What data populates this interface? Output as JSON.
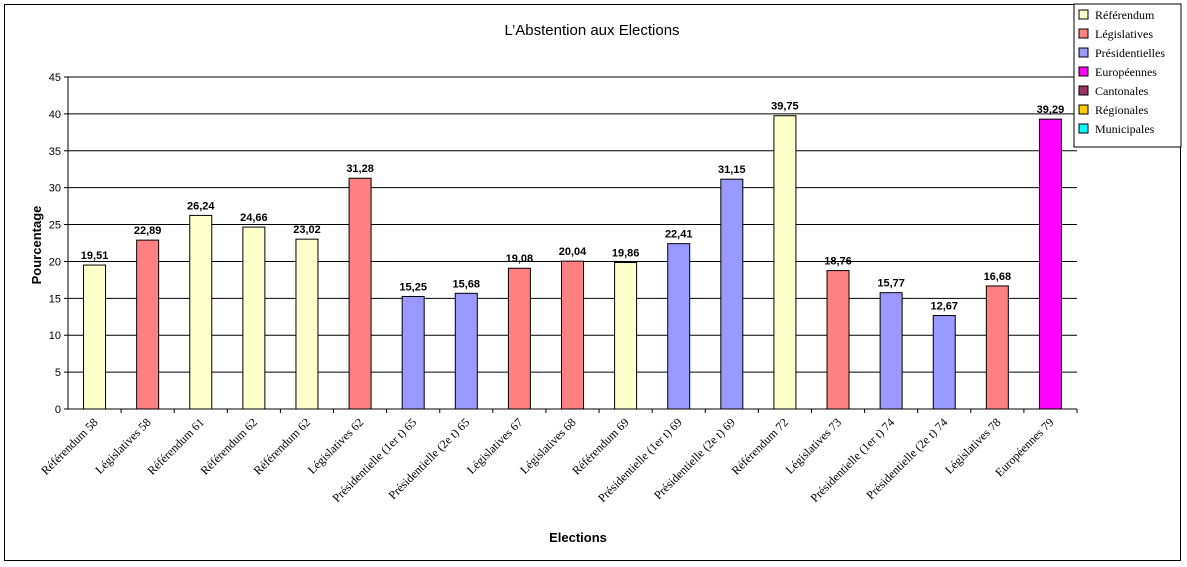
{
  "chart_data": {
    "type": "bar",
    "title": "L’Abstention aux Elections",
    "xlabel": "Elections",
    "ylabel": "Pourcentage",
    "ylim": [
      0,
      45
    ],
    "yticks": [
      0,
      5,
      10,
      15,
      20,
      25,
      30,
      35,
      40,
      45
    ],
    "grid": true,
    "legend_position": "top-right",
    "legend": [
      {
        "name": "Référendum",
        "color": "#FFFFCC"
      },
      {
        "name": "Législatives",
        "color": "#FF8080"
      },
      {
        "name": "Présidentielles",
        "color": "#9999FF"
      },
      {
        "name": "Européennes",
        "color": "#FF00FF"
      },
      {
        "name": "Cantonales",
        "color": "#993366"
      },
      {
        "name": "Régionales",
        "color": "#FFCC00"
      },
      {
        "name": "Municipales",
        "color": "#00FFFF"
      }
    ],
    "categories": [
      "Référendum 58",
      "Législatives 58",
      "Référendum 61",
      "Référendum 62",
      "Référendum 62",
      "Législatives 62",
      "Présidentielle (1er t) 65",
      "Présidentielle (2e t) 65",
      "Législatives 67",
      "Législatives 68",
      "Référendum 69",
      "Présidentielle (1er t) 69",
      "Présidentielle (2e t) 69",
      "Référendum 72",
      "Législatives 73",
      "Présidentielle (1er t) 74",
      "Présidentielle (2e t) 74",
      "Législatives 78",
      "Européennes 79"
    ],
    "values": [
      19.51,
      22.89,
      26.24,
      24.66,
      23.02,
      31.28,
      15.25,
      15.68,
      19.08,
      20.04,
      19.86,
      22.41,
      31.15,
      39.75,
      18.76,
      15.77,
      12.67,
      16.68,
      39.29
    ],
    "value_labels": [
      "19,51",
      "22,89",
      "26,24",
      "24,66",
      "23,02",
      "31,28",
      "15,25",
      "15,68",
      "19,08",
      "20,04",
      "19,86",
      "22,41",
      "31,15",
      "39,75",
      "18,76",
      "15,77",
      "12,67",
      "16,68",
      "39,29"
    ],
    "bar_series": [
      0,
      1,
      0,
      0,
      0,
      1,
      2,
      2,
      1,
      1,
      0,
      2,
      2,
      0,
      1,
      2,
      2,
      1,
      3
    ]
  }
}
